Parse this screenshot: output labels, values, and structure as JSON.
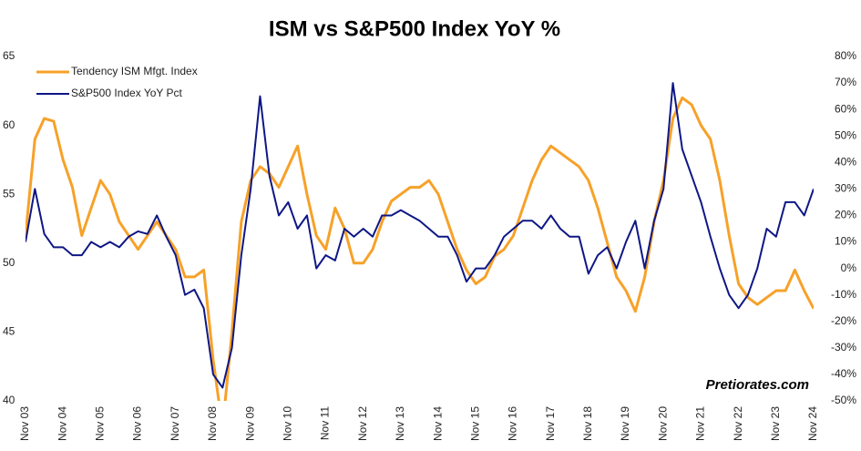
{
  "chart_data": {
    "type": "line",
    "title": "ISM vs S&P500 Index YoY %",
    "watermark": "Pretiorates.com",
    "legend": "upper left",
    "x": [
      0,
      3,
      6,
      9,
      12,
      15,
      18,
      21,
      24,
      27,
      30,
      33,
      36,
      39,
      42,
      45,
      48,
      51,
      54,
      57,
      60,
      63,
      66,
      69,
      72,
      75,
      78,
      81,
      84,
      87,
      90,
      93,
      96,
      99,
      102,
      105,
      108,
      111,
      114,
      117,
      120,
      123,
      126,
      129,
      132,
      135,
      138,
      141,
      144,
      147,
      150,
      153,
      156,
      159,
      162,
      165,
      168,
      171,
      174,
      177,
      180,
      183,
      186,
      189,
      192,
      195,
      198,
      201,
      204,
      207,
      210,
      213,
      216,
      219,
      222,
      225,
      228,
      231,
      234,
      237,
      240,
      243,
      246,
      249,
      252
    ],
    "xlim": [
      0,
      252
    ],
    "xticks": [
      {
        "value": 0,
        "label": "Nov 03"
      },
      {
        "value": 12,
        "label": "Nov 04"
      },
      {
        "value": 24,
        "label": "Nov 05"
      },
      {
        "value": 36,
        "label": "Nov 06"
      },
      {
        "value": 48,
        "label": "Nov 07"
      },
      {
        "value": 60,
        "label": "Nov 08"
      },
      {
        "value": 72,
        "label": "Nov 09"
      },
      {
        "value": 84,
        "label": "Nov 10"
      },
      {
        "value": 96,
        "label": "Nov 11"
      },
      {
        "value": 108,
        "label": "Nov 12"
      },
      {
        "value": 120,
        "label": "Nov 13"
      },
      {
        "value": 132,
        "label": "Nov 14"
      },
      {
        "value": 144,
        "label": "Nov 15"
      },
      {
        "value": 156,
        "label": "Nov 16"
      },
      {
        "value": 168,
        "label": "Nov 17"
      },
      {
        "value": 180,
        "label": "Nov 18"
      },
      {
        "value": 192,
        "label": "Nov 19"
      },
      {
        "value": 204,
        "label": "Nov 20"
      },
      {
        "value": 216,
        "label": "Nov 21"
      },
      {
        "value": 228,
        "label": "Nov 22"
      },
      {
        "value": 240,
        "label": "Nov 23"
      },
      {
        "value": 252,
        "label": "Nov 24"
      }
    ],
    "ylim": [
      40,
      65
    ],
    "yticks": [
      40,
      45,
      50,
      55,
      60,
      65
    ],
    "y2lim": [
      -50,
      80
    ],
    "y2ticks": [
      {
        "value": -50,
        "label": "-50%"
      },
      {
        "value": -40,
        "label": "-40%"
      },
      {
        "value": -30,
        "label": "-30%"
      },
      {
        "value": -20,
        "label": "-20%"
      },
      {
        "value": -10,
        "label": "-10%"
      },
      {
        "value": 0,
        "label": "0%"
      },
      {
        "value": 10,
        "label": "10%"
      },
      {
        "value": 20,
        "label": "20%"
      },
      {
        "value": 30,
        "label": "30%"
      },
      {
        "value": 40,
        "label": "40%"
      },
      {
        "value": 50,
        "label": "50%"
      },
      {
        "value": 60,
        "label": "60%"
      },
      {
        "value": 70,
        "label": "70%"
      },
      {
        "value": 80,
        "label": "80%"
      }
    ],
    "series": [
      {
        "name": "Tendency ISM Mfgt. Index",
        "color": "#f7a128",
        "axis": "y",
        "values": [
          52,
          59,
          60.5,
          60.3,
          57.5,
          55.5,
          52,
          54,
          56,
          55,
          53,
          52,
          51,
          52,
          53,
          52,
          51,
          49,
          49,
          49.5,
          43,
          38,
          45,
          53,
          56,
          57,
          56.5,
          55.5,
          57,
          58.5,
          55,
          52,
          51,
          54,
          52.5,
          50,
          50,
          51,
          53,
          54.5,
          55,
          55.5,
          55.5,
          56,
          55,
          53,
          51,
          49.5,
          48.5,
          49,
          50.5,
          51,
          52,
          54,
          56,
          57.5,
          58.5,
          58,
          57.5,
          57,
          56,
          54,
          51.5,
          49,
          48,
          46.5,
          49,
          53,
          56,
          60.5,
          62,
          61.5,
          60,
          59,
          56,
          52,
          48.5,
          47.5,
          47,
          47.5,
          48,
          48,
          49.5,
          48,
          46.7
        ]
      },
      {
        "name": "S&P500 Index YoY Pct",
        "color": "#0e1785",
        "axis": "y2",
        "values": [
          10,
          30,
          13,
          8,
          8,
          5,
          5,
          10,
          8,
          10,
          8,
          12,
          14,
          13,
          20,
          12,
          5,
          -10,
          -8,
          -15,
          -40,
          -45,
          -30,
          5,
          30,
          65,
          35,
          20,
          25,
          15,
          20,
          0,
          5,
          3,
          15,
          12,
          15,
          12,
          20,
          20,
          22,
          20,
          18,
          15,
          12,
          12,
          5,
          -5,
          0,
          0,
          5,
          12,
          15,
          18,
          18,
          15,
          20,
          15,
          12,
          12,
          -2,
          5,
          8,
          0,
          10,
          18,
          0,
          18,
          30,
          70,
          45,
          35,
          25,
          12,
          0,
          -10,
          -15,
          -10,
          0,
          15,
          12,
          25,
          25,
          20,
          30
        ]
      }
    ]
  }
}
